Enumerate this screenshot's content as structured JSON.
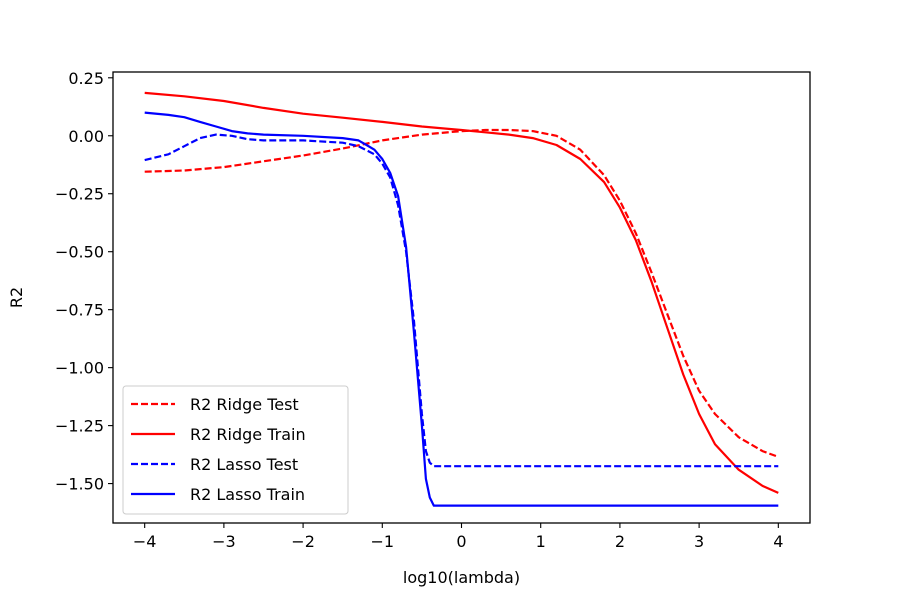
{
  "chart_data": {
    "type": "line",
    "title": "",
    "xlabel": "log10(lambda)",
    "ylabel": "R2",
    "xlim": [
      -4.4,
      4.4
    ],
    "ylim": [
      -1.67,
      0.275
    ],
    "xticks": [
      -4,
      -3,
      -2,
      -1,
      0,
      1,
      2,
      3,
      4
    ],
    "yticks": [
      0.25,
      0.0,
      -0.25,
      -0.5,
      -0.75,
      -1.0,
      -1.25,
      -1.5
    ],
    "xtick_labels": [
      "−4",
      "−3",
      "−2",
      "−1",
      "0",
      "1",
      "2",
      "3",
      "4"
    ],
    "ytick_labels": [
      "0.25",
      "0.00",
      "−0.25",
      "−0.50",
      "−0.75",
      "−1.00",
      "−1.25",
      "−1.50"
    ],
    "grid": false,
    "legend_position": "lower-left",
    "series": [
      {
        "name": "R2 Ridge Test",
        "color": "#ff0000",
        "style": "dashed",
        "x": [
          -4,
          -3.5,
          -3,
          -2.5,
          -2,
          -1.5,
          -1,
          -0.5,
          0,
          0.3,
          0.6,
          0.9,
          1.2,
          1.5,
          1.8,
          2.0,
          2.2,
          2.4,
          2.6,
          2.8,
          3.0,
          3.2,
          3.5,
          3.8,
          4.0
        ],
        "y": [
          -0.155,
          -0.15,
          -0.135,
          -0.11,
          -0.085,
          -0.055,
          -0.02,
          0.005,
          0.02,
          0.025,
          0.025,
          0.02,
          0.0,
          -0.06,
          -0.17,
          -0.28,
          -0.42,
          -0.59,
          -0.77,
          -0.95,
          -1.1,
          -1.2,
          -1.3,
          -1.36,
          -1.385
        ]
      },
      {
        "name": "R2 Ridge Train",
        "color": "#ff0000",
        "style": "solid",
        "x": [
          -4,
          -3.5,
          -3,
          -2.5,
          -2,
          -1.5,
          -1,
          -0.5,
          0,
          0.3,
          0.6,
          0.9,
          1.2,
          1.5,
          1.8,
          2.0,
          2.2,
          2.4,
          2.6,
          2.8,
          3.0,
          3.2,
          3.5,
          3.8,
          4.0
        ],
        "y": [
          0.185,
          0.17,
          0.15,
          0.12,
          0.095,
          0.078,
          0.06,
          0.04,
          0.025,
          0.015,
          0.005,
          -0.01,
          -0.04,
          -0.1,
          -0.2,
          -0.31,
          -0.45,
          -0.63,
          -0.83,
          -1.03,
          -1.2,
          -1.33,
          -1.44,
          -1.51,
          -1.54
        ]
      },
      {
        "name": "R2 Lasso Test",
        "color": "#0000ff",
        "style": "dashed",
        "x": [
          -4,
          -3.7,
          -3.5,
          -3.3,
          -3.1,
          -2.9,
          -2.7,
          -2.5,
          -2.0,
          -1.5,
          -1.3,
          -1.1,
          -1.0,
          -0.9,
          -0.8,
          -0.7,
          -0.6,
          -0.5,
          -0.45,
          -0.4,
          -0.35,
          0,
          1,
          2,
          3,
          4
        ],
        "y": [
          -0.105,
          -0.08,
          -0.045,
          -0.01,
          0.005,
          0.0,
          -0.015,
          -0.02,
          -0.02,
          -0.03,
          -0.045,
          -0.08,
          -0.12,
          -0.18,
          -0.3,
          -0.5,
          -0.8,
          -1.2,
          -1.36,
          -1.41,
          -1.425,
          -1.425,
          -1.425,
          -1.425,
          -1.425,
          -1.425
        ]
      },
      {
        "name": "R2 Lasso Train",
        "color": "#0000ff",
        "style": "solid",
        "x": [
          -4,
          -3.7,
          -3.5,
          -3.3,
          -3.1,
          -2.9,
          -2.7,
          -2.5,
          -2.0,
          -1.5,
          -1.3,
          -1.2,
          -1.1,
          -1.0,
          -0.9,
          -0.8,
          -0.7,
          -0.6,
          -0.5,
          -0.45,
          -0.4,
          -0.35,
          0,
          1,
          2,
          3,
          4
        ],
        "y": [
          0.1,
          0.09,
          0.08,
          0.06,
          0.04,
          0.02,
          0.01,
          0.005,
          0.0,
          -0.01,
          -0.02,
          -0.04,
          -0.06,
          -0.1,
          -0.16,
          -0.26,
          -0.48,
          -0.85,
          -1.25,
          -1.48,
          -1.56,
          -1.595,
          -1.595,
          -1.595,
          -1.595,
          -1.595,
          -1.595
        ]
      }
    ]
  }
}
